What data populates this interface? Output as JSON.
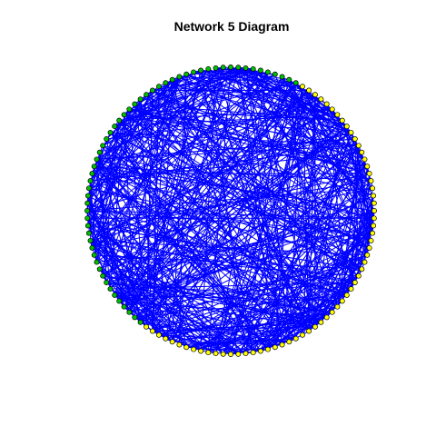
{
  "title": "Network 5 Diagram",
  "network": {
    "layout": "circle",
    "node_count": 120,
    "edge_count": 600,
    "node_colors": {
      "group_a": "#00c000",
      "group_b": "#ffff00"
    },
    "node_outline_color": "#000000",
    "edge_color": "#0000ff"
  }
}
